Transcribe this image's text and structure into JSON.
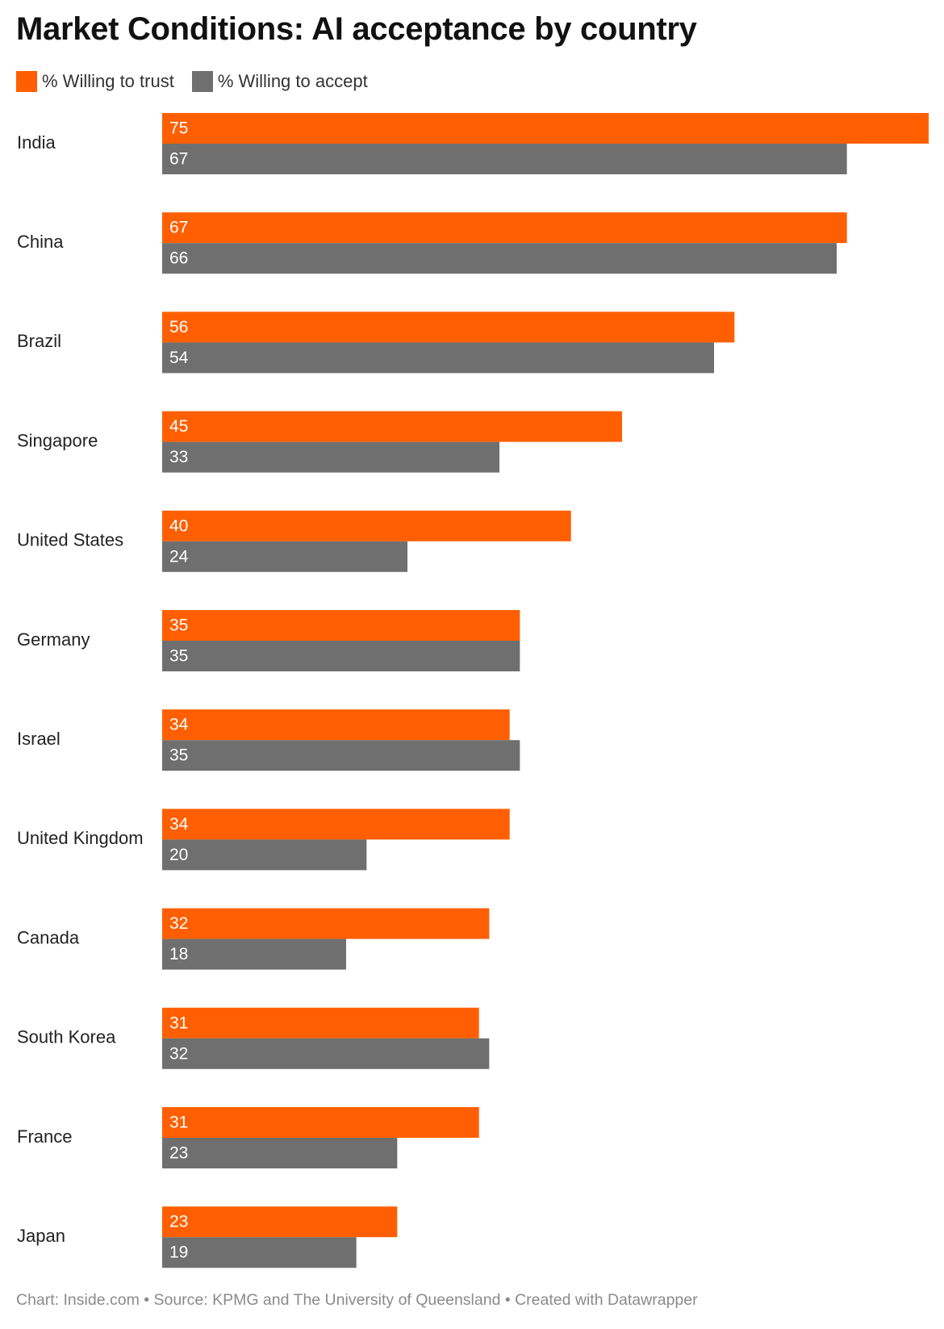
{
  "title": "Market Conditions: AI acceptance by country",
  "legend": {
    "trust_label": "% Willing to trust",
    "accept_label": "% Willing to accept"
  },
  "colors": {
    "trust": "#ff5f00",
    "accept": "#6f6f6f",
    "category_text": "#222222",
    "value_text": "#ffffff",
    "footer_text": "#8a8a8a"
  },
  "chart_data": {
    "type": "bar",
    "orientation": "horizontal",
    "categories": [
      "India",
      "China",
      "Brazil",
      "Singapore",
      "United States",
      "Germany",
      "Israel",
      "United Kingdom",
      "Canada",
      "South Korea",
      "France",
      "Japan"
    ],
    "series": [
      {
        "name": "% Willing to trust",
        "values": [
          75,
          67,
          56,
          45,
          40,
          35,
          34,
          34,
          32,
          31,
          31,
          23
        ]
      },
      {
        "name": "% Willing to accept",
        "values": [
          67,
          66,
          54,
          33,
          24,
          35,
          35,
          20,
          18,
          32,
          23,
          19
        ]
      }
    ],
    "xlim": [
      0,
      75
    ],
    "grid": false,
    "legend_position": "top-left",
    "data_labels": "inside-left"
  },
  "footer": "Chart: Inside.com • Source: KPMG and The University of Queensland • Created with Datawrapper"
}
